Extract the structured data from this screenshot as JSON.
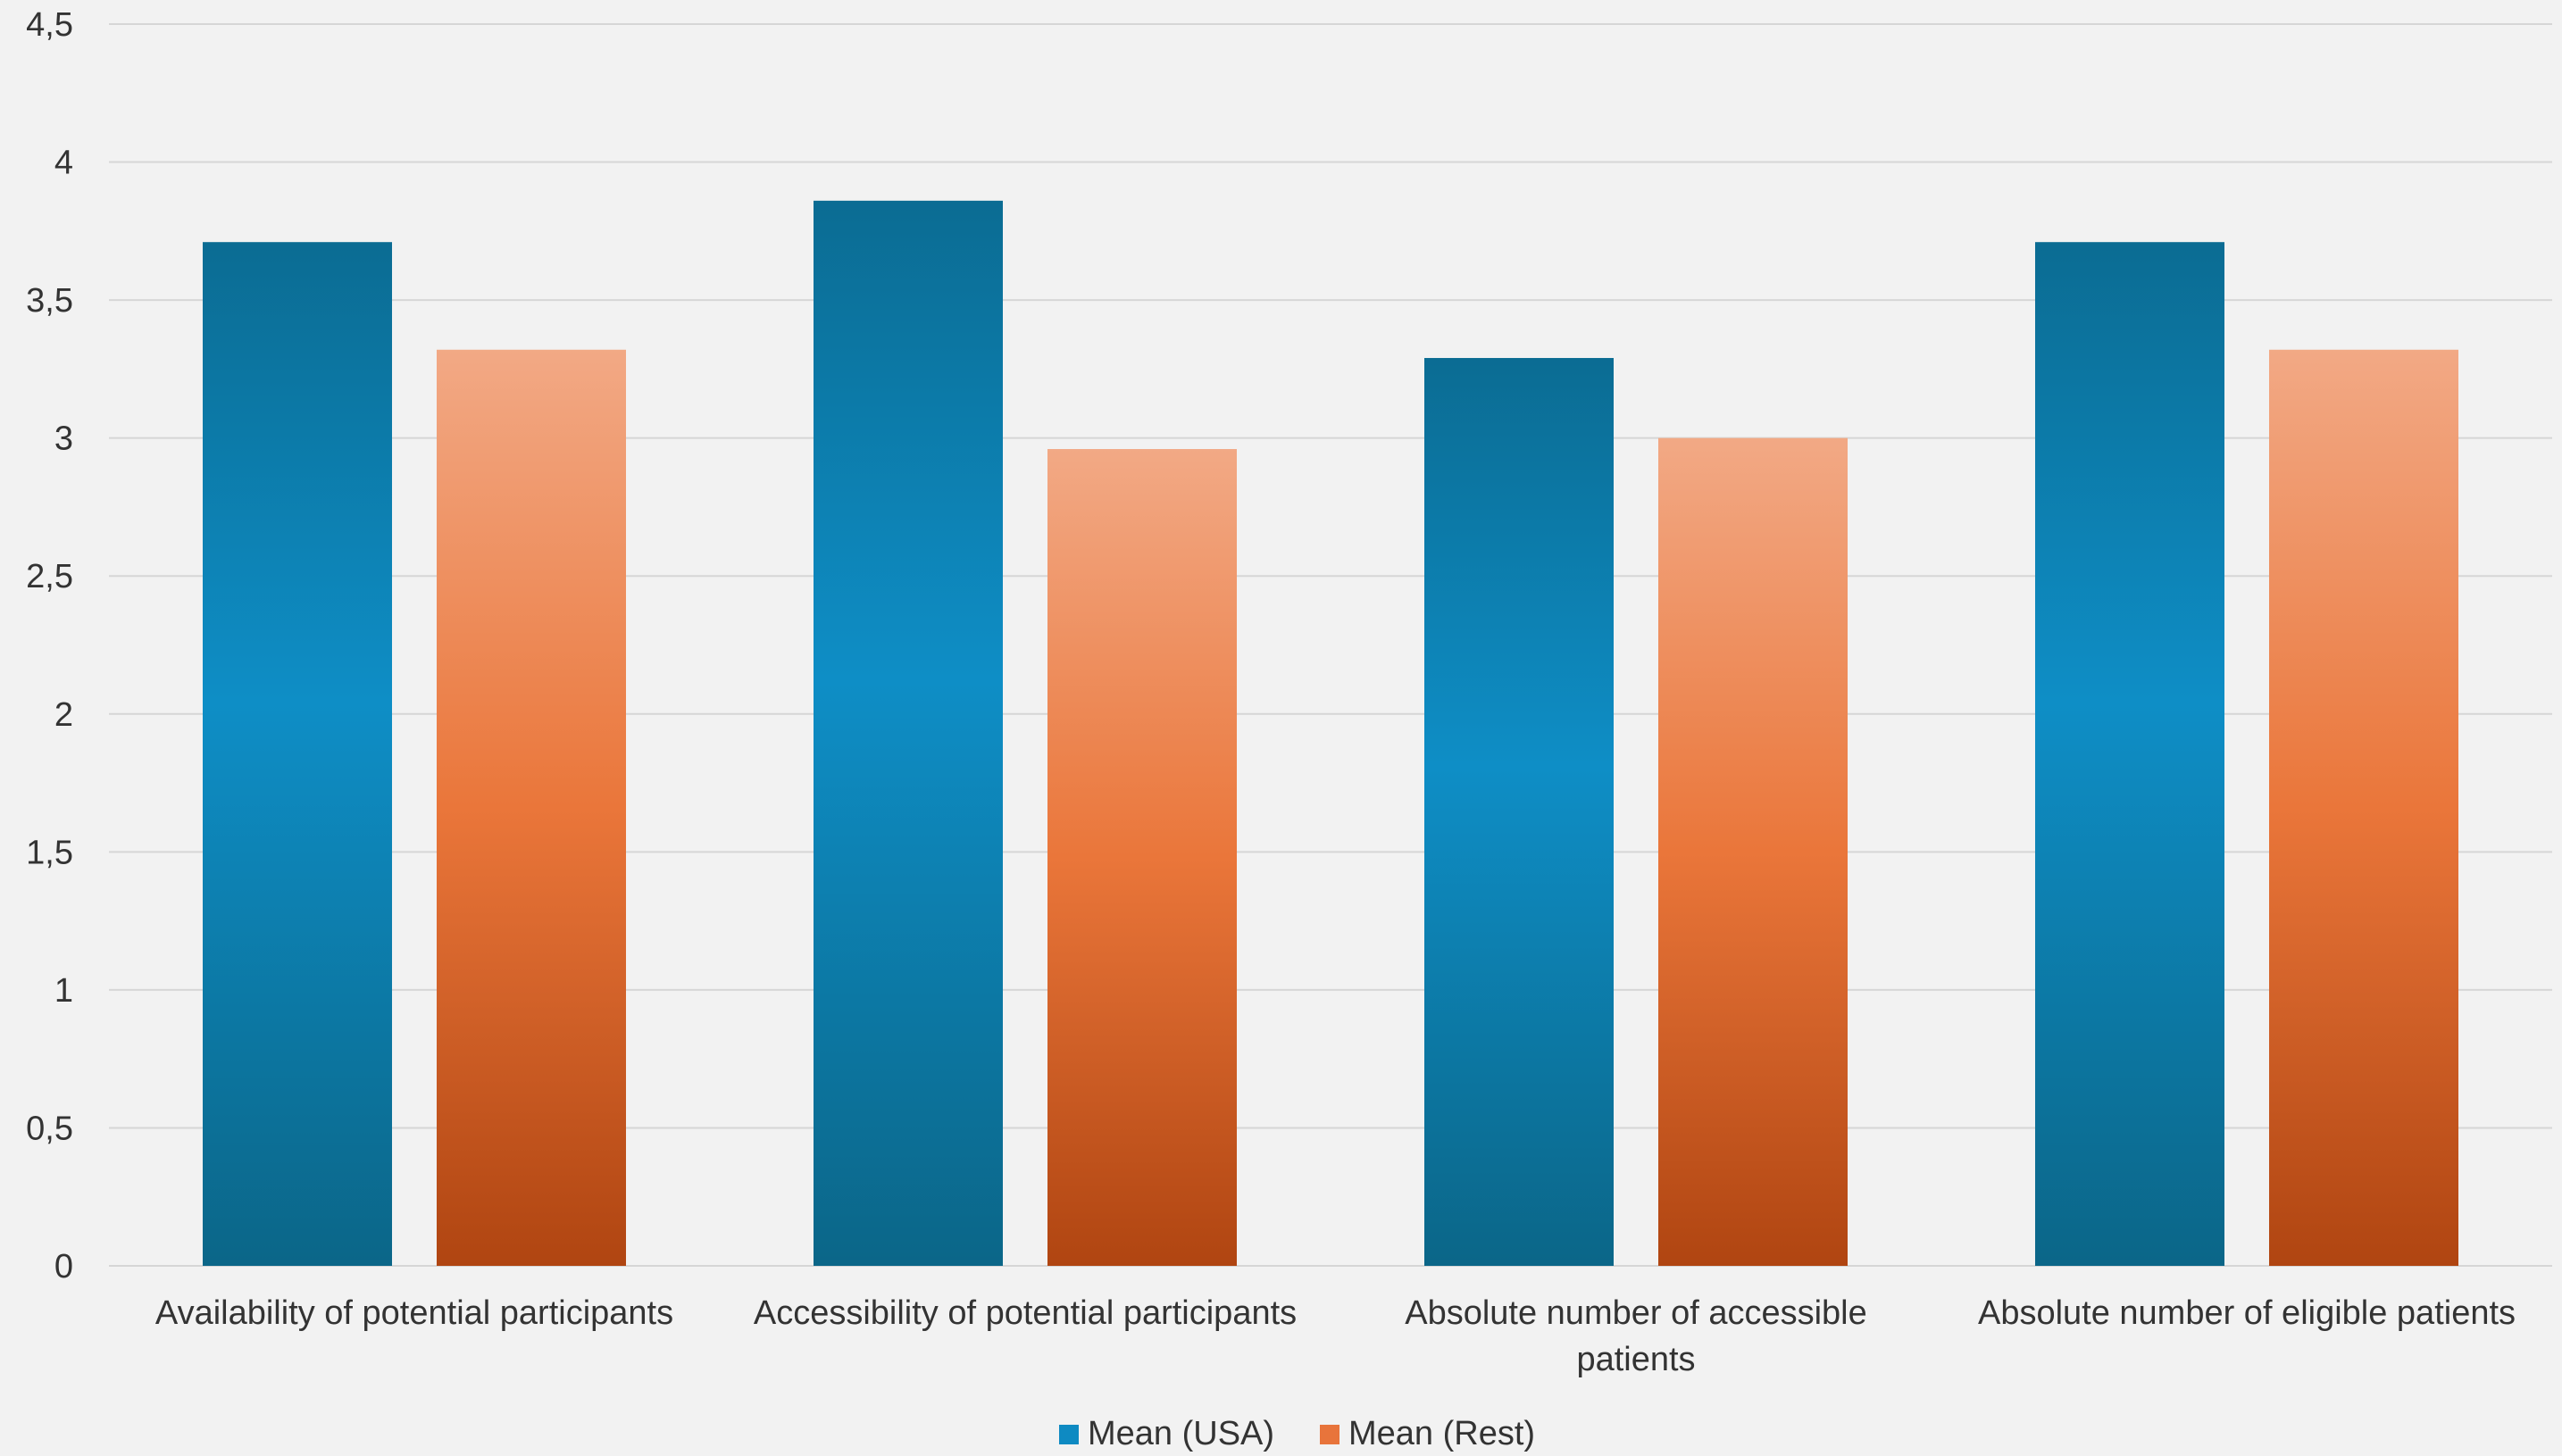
{
  "chart_data": {
    "type": "bar",
    "categories": [
      [
        "Availability of potential participants"
      ],
      [
        "Accessibility of potential participants"
      ],
      [
        "Absolute number of accessible",
        "patients"
      ],
      [
        "Absolute number of eligible patients"
      ]
    ],
    "series": [
      {
        "name": "Mean (USA)",
        "values": [
          3.71,
          3.86,
          3.29,
          3.71
        ],
        "color": "#0e8ac2"
      },
      {
        "name": "Mean (Rest)",
        "values": [
          3.32,
          2.96,
          3.0,
          3.32
        ],
        "color": "#e8743b"
      }
    ],
    "y_ticks": [
      "0",
      "0,5",
      "1",
      "1,5",
      "2",
      "2,5",
      "3",
      "3,5",
      "4",
      "4,5"
    ],
    "ylim": [
      0,
      4.5
    ],
    "grid": true,
    "legend_position": "bottom-center"
  }
}
